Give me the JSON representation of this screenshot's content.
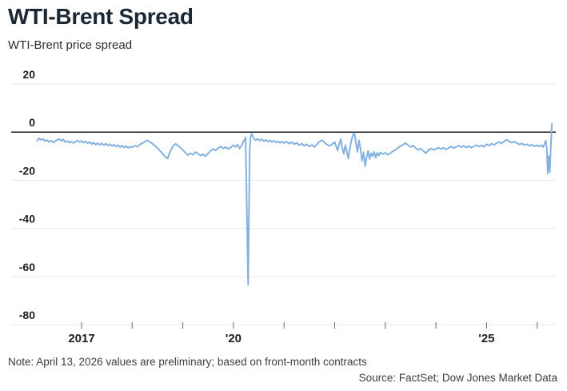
{
  "header": {
    "title": "WTI-Brent Spread",
    "subtitle": "WTI-Brent price spread"
  },
  "footer": {
    "note": "Note: April 13, 2026 values are preliminary; based on front-month contracts",
    "source": "Source: FactSet; Dow Jones Market Data"
  },
  "colors": {
    "line": "#84b2df",
    "zero_line": "#1a1a1a",
    "gridline": "#e8e8e8",
    "tick": "#6b6b6b",
    "axis_label": "#1f1f1f",
    "title": "#1b2733"
  },
  "chart_data": {
    "type": "line",
    "title": "WTI-Brent Spread",
    "subtitle": "WTI-Brent price spread",
    "grid": "horizontal",
    "legend": "none",
    "y_axis": {
      "ticks": [
        20,
        0,
        -20,
        -40,
        -60,
        -80
      ],
      "tick_labels": [
        "20",
        "0",
        "-20",
        "-40",
        "-60",
        "-80"
      ],
      "range": [
        -80,
        20
      ],
      "zero_line": true
    },
    "x_axis": {
      "ticks": [
        2017,
        2018,
        2019,
        2020,
        2021,
        2022,
        2023,
        2024,
        2025,
        2026
      ],
      "tick_labels": [
        "2017",
        "",
        "",
        "'20",
        "",
        "",
        "",
        "",
        "'25",
        ""
      ],
      "range": [
        2015.6,
        2026.4
      ]
    },
    "series": [
      {
        "name": "WTI-Brent price spread",
        "color": "#84b2df",
        "points": [
          [
            2016.12,
            -3.6
          ],
          [
            2016.16,
            -2.6
          ],
          [
            2016.2,
            -3.2
          ],
          [
            2016.24,
            -2.9
          ],
          [
            2016.28,
            -3.8
          ],
          [
            2016.32,
            -3.3
          ],
          [
            2016.36,
            -4.1
          ],
          [
            2016.4,
            -3.6
          ],
          [
            2016.44,
            -4.3
          ],
          [
            2016.48,
            -3.8
          ],
          [
            2016.52,
            -3.2
          ],
          [
            2016.56,
            -2.9
          ],
          [
            2016.6,
            -3.6
          ],
          [
            2016.64,
            -3.1
          ],
          [
            2016.68,
            -4.2
          ],
          [
            2016.72,
            -3.7
          ],
          [
            2016.76,
            -4.4
          ],
          [
            2016.8,
            -3.9
          ],
          [
            2016.84,
            -4.6
          ],
          [
            2016.88,
            -4.0
          ],
          [
            2016.92,
            -3.5
          ],
          [
            2016.96,
            -4.2
          ],
          [
            2017.0,
            -3.7
          ],
          [
            2017.04,
            -4.4
          ],
          [
            2017.08,
            -3.9
          ],
          [
            2017.12,
            -4.7
          ],
          [
            2017.16,
            -4.1
          ],
          [
            2017.2,
            -5.0
          ],
          [
            2017.24,
            -4.4
          ],
          [
            2017.28,
            -5.2
          ],
          [
            2017.32,
            -4.6
          ],
          [
            2017.36,
            -5.3
          ],
          [
            2017.4,
            -4.7
          ],
          [
            2017.44,
            -5.4
          ],
          [
            2017.48,
            -4.8
          ],
          [
            2017.52,
            -5.6
          ],
          [
            2017.56,
            -5.0
          ],
          [
            2017.6,
            -5.8
          ],
          [
            2017.64,
            -5.2
          ],
          [
            2017.68,
            -6.0
          ],
          [
            2017.72,
            -5.4
          ],
          [
            2017.76,
            -6.2
          ],
          [
            2017.8,
            -5.6
          ],
          [
            2017.84,
            -6.4
          ],
          [
            2017.88,
            -5.8
          ],
          [
            2017.92,
            -6.6
          ],
          [
            2017.96,
            -6.0
          ],
          [
            2018.0,
            -6.3
          ],
          [
            2018.05,
            -5.6
          ],
          [
            2018.1,
            -6.1
          ],
          [
            2018.15,
            -5.2
          ],
          [
            2018.2,
            -4.6
          ],
          [
            2018.25,
            -4.0
          ],
          [
            2018.3,
            -3.4
          ],
          [
            2018.35,
            -4.2
          ],
          [
            2018.4,
            -4.8
          ],
          [
            2018.45,
            -5.7
          ],
          [
            2018.5,
            -6.6
          ],
          [
            2018.55,
            -7.8
          ],
          [
            2018.6,
            -9.0
          ],
          [
            2018.65,
            -10.2
          ],
          [
            2018.7,
            -11.0
          ],
          [
            2018.74,
            -8.6
          ],
          [
            2018.78,
            -6.8
          ],
          [
            2018.82,
            -5.4
          ],
          [
            2018.86,
            -4.9
          ],
          [
            2018.9,
            -5.6
          ],
          [
            2018.95,
            -6.4
          ],
          [
            2019.0,
            -7.4
          ],
          [
            2019.05,
            -8.6
          ],
          [
            2019.1,
            -9.6
          ],
          [
            2019.15,
            -8.8
          ],
          [
            2019.2,
            -9.4
          ],
          [
            2019.25,
            -8.3
          ],
          [
            2019.3,
            -9.0
          ],
          [
            2019.35,
            -9.8
          ],
          [
            2019.4,
            -9.2
          ],
          [
            2019.45,
            -10.0
          ],
          [
            2019.5,
            -8.8
          ],
          [
            2019.55,
            -7.8
          ],
          [
            2019.6,
            -7.0
          ],
          [
            2019.65,
            -7.6
          ],
          [
            2019.7,
            -6.6
          ],
          [
            2019.75,
            -6.0
          ],
          [
            2019.8,
            -6.8
          ],
          [
            2019.85,
            -6.2
          ],
          [
            2019.9,
            -7.0
          ],
          [
            2019.95,
            -6.3
          ],
          [
            2020.0,
            -5.4
          ],
          [
            2020.04,
            -6.2
          ],
          [
            2020.08,
            -5.2
          ],
          [
            2020.12,
            -6.8
          ],
          [
            2020.16,
            -5.6
          ],
          [
            2020.2,
            -3.8
          ],
          [
            2020.24,
            -2.2
          ],
          [
            2020.29,
            -63.4
          ],
          [
            2020.32,
            -7.5
          ],
          [
            2020.34,
            -2.0
          ],
          [
            2020.36,
            -0.8
          ],
          [
            2020.4,
            -2.6
          ],
          [
            2020.44,
            -3.4
          ],
          [
            2020.48,
            -2.8
          ],
          [
            2020.52,
            -3.5
          ],
          [
            2020.56,
            -3.0
          ],
          [
            2020.6,
            -3.8
          ],
          [
            2020.64,
            -3.2
          ],
          [
            2020.68,
            -4.0
          ],
          [
            2020.72,
            -3.4
          ],
          [
            2020.76,
            -4.2
          ],
          [
            2020.8,
            -3.6
          ],
          [
            2020.84,
            -4.3
          ],
          [
            2020.88,
            -3.8
          ],
          [
            2020.92,
            -4.5
          ],
          [
            2020.96,
            -4.0
          ],
          [
            2021.0,
            -4.6
          ],
          [
            2021.05,
            -4.0
          ],
          [
            2021.1,
            -4.8
          ],
          [
            2021.15,
            -4.2
          ],
          [
            2021.2,
            -5.0
          ],
          [
            2021.25,
            -4.5
          ],
          [
            2021.3,
            -5.4
          ],
          [
            2021.35,
            -4.8
          ],
          [
            2021.4,
            -5.7
          ],
          [
            2021.45,
            -5.0
          ],
          [
            2021.5,
            -6.0
          ],
          [
            2021.55,
            -5.3
          ],
          [
            2021.6,
            -6.2
          ],
          [
            2021.65,
            -5.0
          ],
          [
            2021.7,
            -4.0
          ],
          [
            2021.75,
            -3.3
          ],
          [
            2021.8,
            -4.4
          ],
          [
            2021.85,
            -5.2
          ],
          [
            2021.9,
            -5.8
          ],
          [
            2021.95,
            -5.0
          ],
          [
            2022.0,
            -4.2
          ],
          [
            2022.03,
            -6.0
          ],
          [
            2022.06,
            -7.6
          ],
          [
            2022.09,
            -4.8
          ],
          [
            2022.12,
            -3.0
          ],
          [
            2022.15,
            -6.4
          ],
          [
            2022.18,
            -9.0
          ],
          [
            2022.21,
            -5.4
          ],
          [
            2022.24,
            -8.0
          ],
          [
            2022.27,
            -11.0
          ],
          [
            2022.3,
            -6.6
          ],
          [
            2022.33,
            -3.6
          ],
          [
            2022.36,
            -1.2
          ],
          [
            2022.39,
            -0.4
          ],
          [
            2022.42,
            -4.6
          ],
          [
            2022.45,
            -8.2
          ],
          [
            2022.48,
            -3.4
          ],
          [
            2022.51,
            -7.0
          ],
          [
            2022.54,
            -12.0
          ],
          [
            2022.57,
            -8.4
          ],
          [
            2022.6,
            -14.2
          ],
          [
            2022.63,
            -10.4
          ],
          [
            2022.66,
            -7.8
          ],
          [
            2022.69,
            -11.2
          ],
          [
            2022.72,
            -8.8
          ],
          [
            2022.75,
            -10.0
          ],
          [
            2022.78,
            -8.2
          ],
          [
            2022.81,
            -10.6
          ],
          [
            2022.84,
            -8.6
          ],
          [
            2022.87,
            -9.8
          ],
          [
            2022.9,
            -8.4
          ],
          [
            2022.95,
            -9.2
          ],
          [
            2023.0,
            -8.6
          ],
          [
            2023.05,
            -9.4
          ],
          [
            2023.1,
            -8.8
          ],
          [
            2023.15,
            -8.0
          ],
          [
            2023.2,
            -7.4
          ],
          [
            2023.25,
            -6.6
          ],
          [
            2023.3,
            -5.8
          ],
          [
            2023.35,
            -5.2
          ],
          [
            2023.4,
            -4.6
          ],
          [
            2023.45,
            -5.4
          ],
          [
            2023.5,
            -6.2
          ],
          [
            2023.55,
            -5.6
          ],
          [
            2023.6,
            -6.6
          ],
          [
            2023.65,
            -7.4
          ],
          [
            2023.7,
            -6.8
          ],
          [
            2023.75,
            -7.8
          ],
          [
            2023.8,
            -8.8
          ],
          [
            2023.85,
            -7.6
          ],
          [
            2023.9,
            -6.8
          ],
          [
            2023.95,
            -7.4
          ],
          [
            2024.0,
            -7.0
          ],
          [
            2024.05,
            -6.4
          ],
          [
            2024.1,
            -7.1
          ],
          [
            2024.15,
            -6.5
          ],
          [
            2024.2,
            -7.2
          ],
          [
            2024.25,
            -6.6
          ],
          [
            2024.3,
            -6.0
          ],
          [
            2024.35,
            -6.7
          ],
          [
            2024.4,
            -6.1
          ],
          [
            2024.45,
            -5.6
          ],
          [
            2024.5,
            -6.3
          ],
          [
            2024.55,
            -5.7
          ],
          [
            2024.6,
            -6.4
          ],
          [
            2024.65,
            -5.8
          ],
          [
            2024.7,
            -6.5
          ],
          [
            2024.75,
            -5.9
          ],
          [
            2024.8,
            -5.4
          ],
          [
            2024.85,
            -6.0
          ],
          [
            2024.9,
            -5.5
          ],
          [
            2024.95,
            -6.1
          ],
          [
            2025.0,
            -5.0
          ],
          [
            2025.05,
            -5.6
          ],
          [
            2025.1,
            -4.8
          ],
          [
            2025.15,
            -5.3
          ],
          [
            2025.2,
            -4.6
          ],
          [
            2025.25,
            -4.1
          ],
          [
            2025.3,
            -4.7
          ],
          [
            2025.35,
            -3.8
          ],
          [
            2025.4,
            -3.2
          ],
          [
            2025.45,
            -3.9
          ],
          [
            2025.5,
            -4.4
          ],
          [
            2025.55,
            -3.9
          ],
          [
            2025.6,
            -4.6
          ],
          [
            2025.65,
            -5.1
          ],
          [
            2025.7,
            -4.7
          ],
          [
            2025.75,
            -5.4
          ],
          [
            2025.8,
            -5.0
          ],
          [
            2025.85,
            -5.7
          ],
          [
            2025.9,
            -5.2
          ],
          [
            2025.95,
            -5.9
          ],
          [
            2026.0,
            -5.4
          ],
          [
            2026.04,
            -6.0
          ],
          [
            2026.08,
            -5.5
          ],
          [
            2026.12,
            -6.2
          ],
          [
            2026.15,
            -4.6
          ],
          [
            2026.17,
            -3.6
          ],
          [
            2026.19,
            -6.5
          ],
          [
            2026.21,
            -17.2
          ],
          [
            2026.23,
            -10.0
          ],
          [
            2026.25,
            -16.6
          ],
          [
            2026.27,
            -6.0
          ],
          [
            2026.29,
            3.4
          ]
        ]
      }
    ]
  }
}
